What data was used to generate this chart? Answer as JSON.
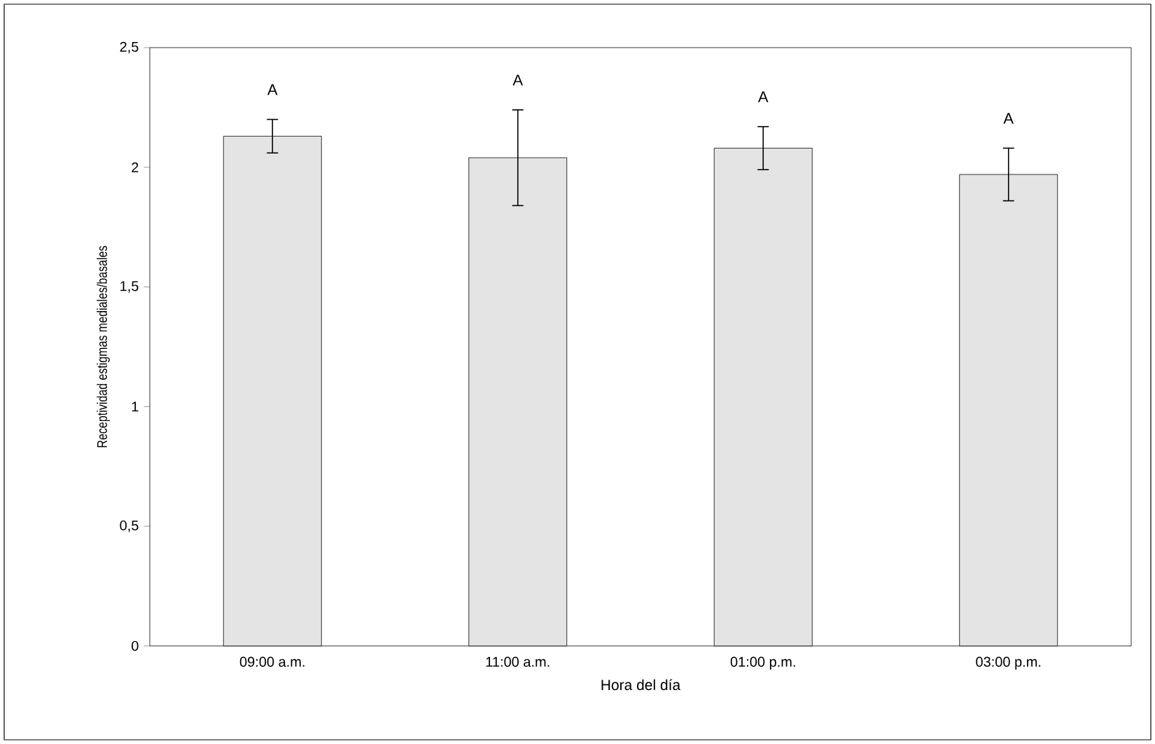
{
  "chart_data": {
    "type": "bar",
    "xlabel": "Hora del día",
    "ylabel": "Receptividad estigmas mediales/basales",
    "categories": [
      "09:00 a.m.",
      "11:00 a.m.",
      "01:00 p.m.",
      "03:00 p.m."
    ],
    "values": [
      2.13,
      2.04,
      2.08,
      1.97
    ],
    "color": "#e4e4e4",
    "errors": [
      [
        2.06,
        2.2
      ],
      [
        1.84,
        2.24
      ],
      [
        1.99,
        2.17
      ],
      [
        1.86,
        2.08
      ]
    ],
    "ylim": [
      0,
      2.5
    ],
    "yticks": [
      {
        "value": 0,
        "label": "0"
      },
      {
        "value": 0.5,
        "label": "0,5"
      },
      {
        "value": 1,
        "label": "1"
      },
      {
        "value": 1.5,
        "label": "1,5"
      },
      {
        "value": 2,
        "label": "2"
      },
      {
        "value": 2.5,
        "label": "2,5"
      }
    ],
    "annotations": [
      "A",
      "A",
      "A",
      "A"
    ]
  }
}
